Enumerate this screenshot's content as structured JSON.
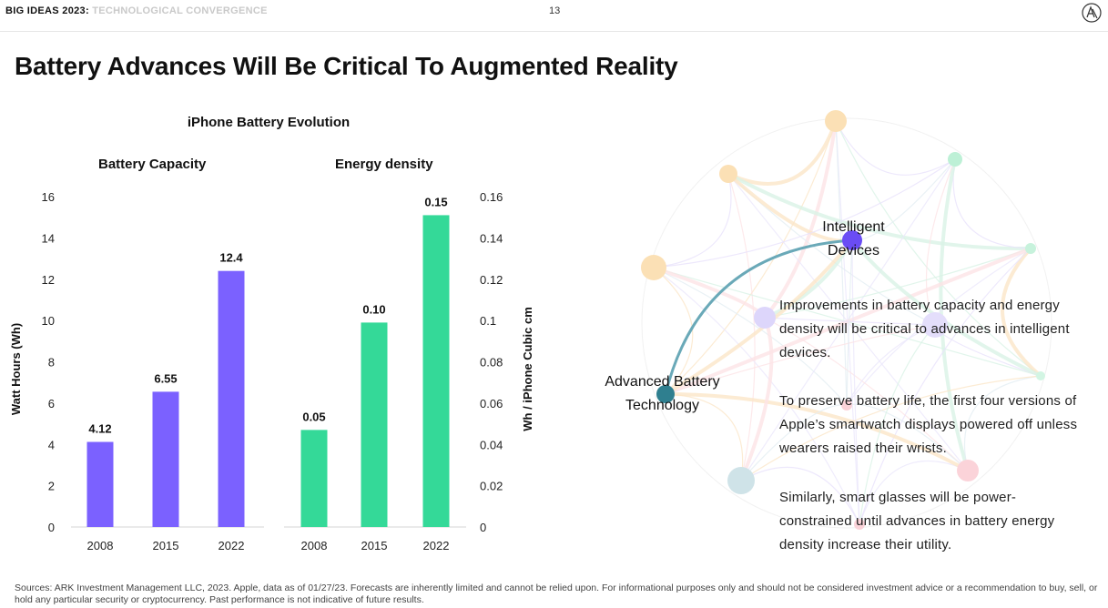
{
  "header": {
    "brand_bold": "BIG IDEAS 2023:",
    "brand_light": "TECHNOLOGICAL CONVERGENCE",
    "page_number": "13",
    "logo_icon": "ark-logo-icon"
  },
  "title": "Battery Advances Will Be Critical To Augmented Reality",
  "chart_heading": "iPhone Battery Evolution",
  "chart_data": [
    {
      "type": "bar",
      "title": "Battery Capacity",
      "categories": [
        "2008",
        "2015",
        "2022"
      ],
      "values": [
        4.12,
        6.55,
        12.4
      ],
      "data_labels": [
        "4.12",
        "6.55",
        "12.4"
      ],
      "ylabel": "Watt Hours (Wh)",
      "ylim": [
        0,
        16
      ],
      "yticks": [
        "0",
        "2",
        "4",
        "6",
        "8",
        "10",
        "12",
        "14",
        "16"
      ],
      "color": "#7b61ff",
      "axis_side": "left",
      "grid": false
    },
    {
      "type": "bar",
      "title": "Energy density",
      "categories": [
        "2008",
        "2015",
        "2022"
      ],
      "values": [
        0.047,
        0.099,
        0.151
      ],
      "data_labels": [
        "0.05",
        "0.10",
        "0.15"
      ],
      "ylabel": "Wh / iPhone Cubic cm",
      "ylim": [
        0,
        0.16
      ],
      "yticks": [
        "0",
        "0.02",
        "0.04",
        "0.06",
        "0.08",
        "0.1",
        "0.12",
        "0.14",
        "0.16"
      ],
      "color": "#34d998",
      "axis_side": "right",
      "grid": false
    }
  ],
  "network": {
    "node_intelligent": "Intelligent\nDevices",
    "node_battery": "Advanced Battery\nTechnology",
    "colors": {
      "link": "#6aa9b8",
      "intelligent": "#6a4cf5",
      "battery": "#2f7f8f"
    }
  },
  "paragraphs": [
    "Improvements in battery capacity and energy density will be critical to advances in intelligent devices.",
    "To preserve battery life, the first four versions of Apple’s smartwatch displays powered off unless wearers raised their wrists.",
    "Similarly, smart glasses will be power-constrained until advances in battery energy density increase their utility."
  ],
  "footer": "Sources: ARK Investment Management LLC, 2023. Apple, data as of 01/27/23. Forecasts are inherently limited and cannot be relied upon. For informational purposes only and should not be considered investment advice or a recommendation to buy, sell, or hold any particular security or cryptocurrency. Past performance is not indicative of future results."
}
